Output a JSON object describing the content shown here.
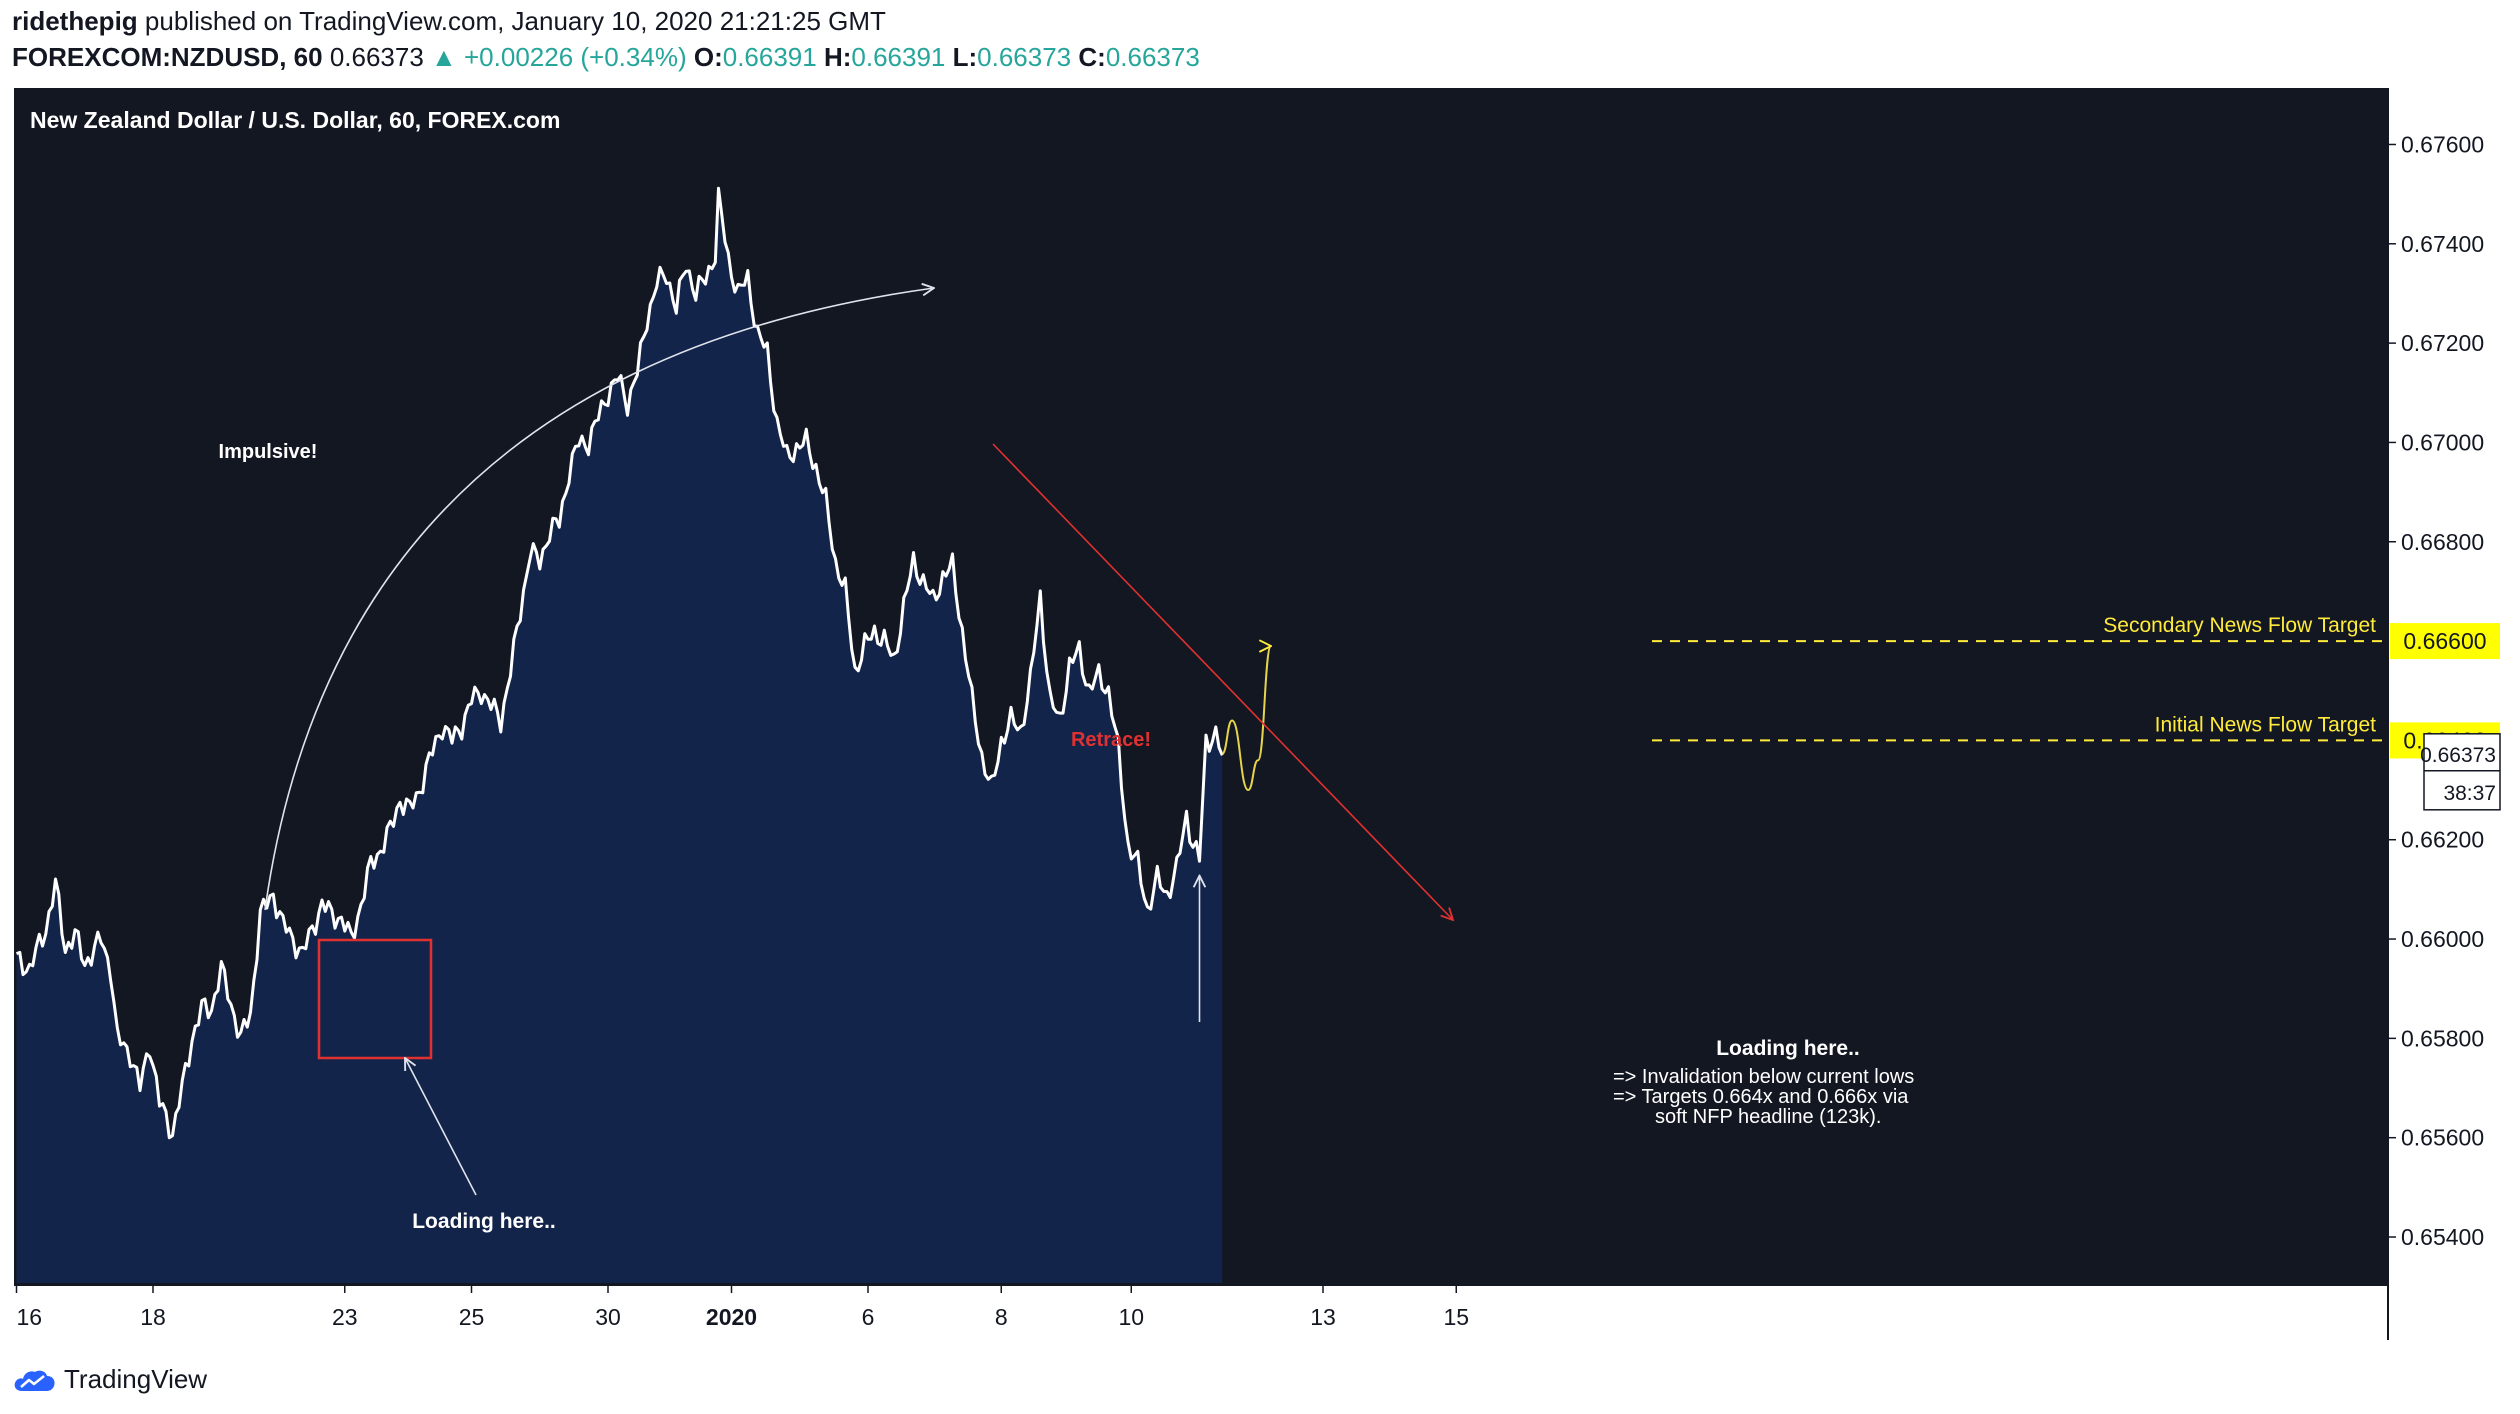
{
  "header": {
    "author": "ridethepig",
    "published_text": "published on TradingView.com, January 10, 2020 21:21:25 GMT",
    "symbol": "FOREXCOM:NZDUSD, 60",
    "last": "0.66373",
    "change": "▲ +0.00226 (+0.34%)",
    "o_label": "O:",
    "o": "0.66391",
    "h_label": "H:",
    "h": "0.66391",
    "l_label": "L:",
    "l": "0.66373",
    "c_label": "C:",
    "c": "0.66373"
  },
  "footer": {
    "brand": "TradingView"
  },
  "colors": {
    "pane_bg": "#131722",
    "area_fill": "#13244a",
    "line": "#ffffff",
    "highlight_price": "#ffff00",
    "target_line": "#ffeb3b",
    "red_annotation": "#e03131",
    "axis_text": "#131722"
  },
  "chart_data": {
    "type": "area",
    "title": "New Zealand Dollar / U.S. Dollar, 60, FOREX.com",
    "ylim": [
      0.653,
      0.6775
    ],
    "y_ticks": [
      "0.67600",
      "0.67400",
      "0.67200",
      "0.67000",
      "0.66800",
      "0.66600",
      "0.66400",
      "0.66200",
      "0.66000",
      "0.65800",
      "0.65600",
      "0.65400"
    ],
    "x_ticks": [
      {
        "label": "16",
        "bar": 0
      },
      {
        "label": "18",
        "bar": 42
      },
      {
        "label": "23",
        "bar": 101
      },
      {
        "label": "25",
        "bar": 140
      },
      {
        "label": "30",
        "bar": 182
      },
      {
        "label": "2020",
        "bar": 220
      },
      {
        "label": "6",
        "bar": 262
      },
      {
        "label": "8",
        "bar": 303
      },
      {
        "label": "10",
        "bar": 343
      },
      {
        "label": "13",
        "bar": 402
      },
      {
        "label": "15",
        "bar": 443
      }
    ],
    "price_anchors": [
      [
        0,
        0.6596
      ],
      [
        4,
        0.6594
      ],
      [
        9,
        0.6602
      ],
      [
        12,
        0.6611
      ],
      [
        15,
        0.6598
      ],
      [
        18,
        0.6601
      ],
      [
        21,
        0.6595
      ],
      [
        26,
        0.66
      ],
      [
        29,
        0.6594
      ],
      [
        31,
        0.658
      ],
      [
        35,
        0.6577
      ],
      [
        38,
        0.657
      ],
      [
        41,
        0.6579
      ],
      [
        44,
        0.6567
      ],
      [
        48,
        0.6561
      ],
      [
        51,
        0.657
      ],
      [
        54,
        0.658
      ],
      [
        57,
        0.6586
      ],
      [
        60,
        0.6586
      ],
      [
        63,
        0.6594
      ],
      [
        66,
        0.6587
      ],
      [
        69,
        0.658
      ],
      [
        72,
        0.6585
      ],
      [
        75,
        0.6605
      ],
      [
        79,
        0.6609
      ],
      [
        82,
        0.6603
      ],
      [
        85,
        0.66
      ],
      [
        88,
        0.6597
      ],
      [
        91,
        0.6602
      ],
      [
        94,
        0.6607
      ],
      [
        97,
        0.6605
      ],
      [
        100,
        0.6604
      ],
      [
        103,
        0.66
      ],
      [
        106,
        0.6607
      ],
      [
        109,
        0.6615
      ],
      [
        112,
        0.6618
      ],
      [
        115,
        0.6622
      ],
      [
        118,
        0.6628
      ],
      [
        121,
        0.6626
      ],
      [
        124,
        0.663
      ],
      [
        127,
        0.6636
      ],
      [
        131,
        0.6643
      ],
      [
        134,
        0.664
      ],
      [
        137,
        0.6643
      ],
      [
        140,
        0.6648
      ],
      [
        143,
        0.665
      ],
      [
        146,
        0.6647
      ],
      [
        149,
        0.6644
      ],
      [
        152,
        0.6654
      ],
      [
        155,
        0.6666
      ],
      [
        158,
        0.6678
      ],
      [
        161,
        0.6676
      ],
      [
        164,
        0.6682
      ],
      [
        167,
        0.6684
      ],
      [
        170,
        0.6694
      ],
      [
        173,
        0.67
      ],
      [
        176,
        0.67
      ],
      [
        179,
        0.6705
      ],
      [
        182,
        0.671
      ],
      [
        185,
        0.6713
      ],
      [
        188,
        0.6708
      ],
      [
        191,
        0.6714
      ],
      [
        194,
        0.6725
      ],
      [
        197,
        0.6732
      ],
      [
        200,
        0.6734
      ],
      [
        203,
        0.6727
      ],
      [
        206,
        0.6736
      ],
      [
        209,
        0.673
      ],
      [
        212,
        0.6733
      ],
      [
        215,
        0.6738
      ],
      [
        216,
        0.6749
      ],
      [
        219,
        0.6737
      ],
      [
        222,
        0.673
      ],
      [
        225,
        0.6733
      ],
      [
        228,
        0.6722
      ],
      [
        231,
        0.6718
      ],
      [
        234,
        0.6704
      ],
      [
        237,
        0.6697
      ],
      [
        240,
        0.6699
      ],
      [
        243,
        0.67
      ],
      [
        246,
        0.6695
      ],
      [
        249,
        0.6688
      ],
      [
        252,
        0.6676
      ],
      [
        255,
        0.667
      ],
      [
        258,
        0.6654
      ],
      [
        261,
        0.6659
      ],
      [
        264,
        0.6662
      ],
      [
        267,
        0.666
      ],
      [
        270,
        0.6656
      ],
      [
        273,
        0.6667
      ],
      [
        276,
        0.6676
      ],
      [
        279,
        0.6672
      ],
      [
        282,
        0.6668
      ],
      [
        285,
        0.6673
      ],
      [
        288,
        0.6675
      ],
      [
        291,
        0.6662
      ],
      [
        294,
        0.6648
      ],
      [
        297,
        0.6637
      ],
      [
        300,
        0.663
      ],
      [
        303,
        0.664
      ],
      [
        306,
        0.6644
      ],
      [
        309,
        0.6642
      ],
      [
        312,
        0.6652
      ],
      [
        315,
        0.6669
      ],
      [
        318,
        0.6648
      ],
      [
        321,
        0.6644
      ],
      [
        324,
        0.6655
      ],
      [
        327,
        0.6658
      ],
      [
        330,
        0.665
      ],
      [
        333,
        0.6653
      ],
      [
        336,
        0.665
      ],
      [
        339,
        0.6638
      ],
      [
        342,
        0.6619
      ],
      [
        345,
        0.6615
      ],
      [
        348,
        0.6606
      ],
      [
        351,
        0.6612
      ],
      [
        354,
        0.6609
      ],
      [
        357,
        0.6614
      ],
      [
        360,
        0.6625
      ],
      [
        362,
        0.6619
      ],
      [
        364,
        0.6616
      ],
      [
        366,
        0.664
      ],
      [
        369,
        0.6641
      ],
      [
        371,
        0.6637
      ]
    ],
    "projection": [
      [
        371,
        0.66373
      ],
      [
        374,
        0.6644
      ],
      [
        379,
        0.663
      ],
      [
        382,
        0.6636
      ],
      [
        386,
        0.6659
      ]
    ]
  },
  "annotations": {
    "impulsive": "Impulsive!",
    "retrace": "Retrace!",
    "loading_left": "Loading here..",
    "loading_right": "Loading here..",
    "note1": "=> Invalidation below current lows",
    "note2": "=> Targets 0.664x and 0.666x via",
    "note3": "soft NFP headline (123k).",
    "secondary_target": "Secondary News Flow Target",
    "initial_target": "Initial News Flow Target",
    "secondary_price": "0.66600",
    "initial_price": "0.66400",
    "current_price": "0.66373",
    "countdown": "38:37"
  }
}
